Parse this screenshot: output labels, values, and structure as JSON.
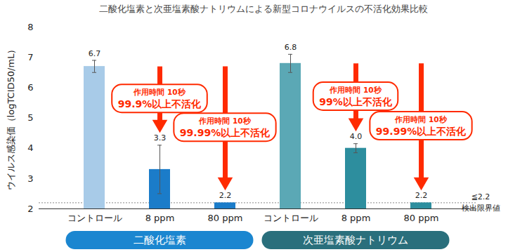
{
  "chart_data": {
    "type": "bar",
    "title": "二酸化塩素と次亜塩素酸ナトリウムによる新型コロナウイルスの不活化効果比較",
    "y_label": "ウイルス感染価（logTCID50/mL）",
    "categories": [
      "コントロール",
      "8 ppm",
      "80 ppm",
      "コントロール",
      "8 ppm",
      "80 ppm"
    ],
    "groups": [
      "二酸化塩素",
      "二酸化塩素",
      "二酸化塩素",
      "次亜塩素酸ナトリウム",
      "次亜塩素酸ナトリウム",
      "次亜塩素酸ナトリウム"
    ],
    "values": [
      6.7,
      3.3,
      2.2,
      6.8,
      4.0,
      2.2
    ],
    "value_labels": [
      "6.7",
      "3.3",
      "2.2",
      "6.8",
      "4.0",
      "2.2"
    ],
    "errors": [
      0.2,
      0.8,
      null,
      0.3,
      0.15,
      null
    ],
    "colors": [
      "#a8cbe8",
      "#1b7cc9",
      "#1b7cc9",
      "#5ba8b5",
      "#2d8e9e",
      "#2d8e9e"
    ],
    "annotations": [
      null,
      [
        "作用時間 10秒",
        "99.9%以上不活化"
      ],
      [
        "作用時間 10秒",
        "99.99%以上不活化"
      ],
      null,
      [
        "作用時間 10秒",
        "99%以上不活化"
      ],
      [
        "作用時間 10秒",
        "99.99%以上不活化"
      ]
    ],
    "reference_line": {
      "value": 2.2,
      "labels": [
        "≦2.2",
        "検出限界値"
      ]
    },
    "ylim": [
      2,
      8
    ],
    "yticks": [
      2,
      3,
      4,
      5,
      6,
      7,
      8
    ],
    "data_labels": true,
    "grid": false
  }
}
